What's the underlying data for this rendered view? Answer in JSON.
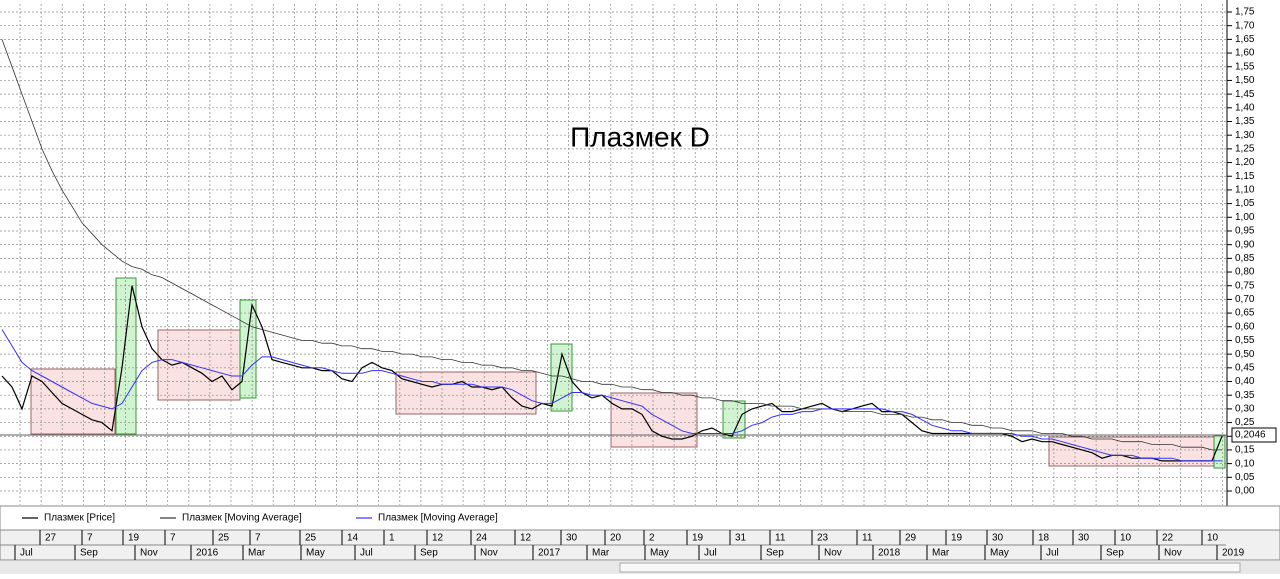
{
  "chart_data": {
    "type": "line",
    "title": "Плазмек D",
    "categories": [
      null,
      null,
      null,
      null,
      null,
      null,
      null,
      null,
      null,
      null,
      null,
      null,
      null,
      null,
      null,
      null,
      null,
      null,
      null,
      null,
      null,
      null,
      null,
      null,
      null,
      null,
      null,
      null,
      null,
      null,
      null,
      null,
      null,
      null,
      null,
      null,
      null,
      null,
      null,
      null,
      null,
      null,
      null,
      null,
      null,
      null,
      null,
      null,
      null,
      null,
      null,
      null,
      null,
      null,
      null,
      null,
      null,
      null,
      null,
      null,
      null,
      null,
      null,
      null,
      null,
      null,
      null,
      null,
      null,
      null,
      null,
      null,
      null,
      null,
      null,
      null,
      null,
      null,
      null,
      null,
      null,
      null,
      null,
      null,
      null,
      null,
      null,
      null,
      null,
      null,
      null,
      null,
      null,
      null,
      null,
      null,
      null,
      null,
      null,
      null,
      null,
      null,
      null,
      null,
      null,
      null,
      null,
      null,
      null,
      null,
      null,
      null,
      null,
      null,
      null,
      null,
      null,
      null,
      null,
      null,
      null,
      null,
      null
    ],
    "series": [
      {
        "name": "Плазмек [Price]",
        "color": "#000000",
        "values": [
          0.42,
          0.38,
          0.3,
          0.42,
          0.4,
          0.36,
          0.32,
          0.3,
          0.28,
          0.26,
          0.25,
          0.22,
          0.45,
          0.75,
          0.6,
          0.52,
          0.48,
          0.46,
          0.47,
          0.45,
          0.43,
          0.4,
          0.42,
          0.37,
          0.4,
          0.68,
          0.6,
          0.48,
          0.47,
          0.46,
          0.45,
          0.45,
          0.44,
          0.44,
          0.41,
          0.4,
          0.45,
          0.47,
          0.45,
          0.44,
          0.41,
          0.4,
          0.39,
          0.38,
          0.39,
          0.39,
          0.4,
          0.38,
          0.38,
          0.37,
          0.38,
          0.34,
          0.31,
          0.3,
          0.32,
          0.31,
          0.5,
          0.4,
          0.36,
          0.34,
          0.35,
          0.32,
          0.3,
          0.3,
          0.28,
          0.22,
          0.2,
          0.19,
          0.19,
          0.2,
          0.22,
          0.23,
          0.21,
          0.2,
          0.28,
          0.3,
          0.31,
          0.32,
          0.29,
          0.29,
          0.3,
          0.31,
          0.32,
          0.3,
          0.29,
          0.3,
          0.31,
          0.32,
          0.29,
          0.29,
          0.28,
          0.25,
          0.22,
          0.21,
          0.21,
          0.21,
          0.21,
          0.21,
          0.21,
          0.21,
          0.21,
          0.2,
          0.18,
          0.19,
          0.18,
          0.18,
          0.17,
          0.16,
          0.15,
          0.14,
          0.12,
          0.13,
          0.13,
          0.12,
          0.12,
          0.12,
          0.11,
          0.11,
          0.11,
          0.11,
          0.11,
          0.11,
          0.2
        ]
      },
      {
        "name": "Плазмек [Moving Average]",
        "color": "#333333",
        "values": [
          1.65,
          1.55,
          1.45,
          1.35,
          1.25,
          1.17,
          1.1,
          1.04,
          0.98,
          0.94,
          0.9,
          0.87,
          0.84,
          0.82,
          0.81,
          0.79,
          0.78,
          0.76,
          0.74,
          0.72,
          0.7,
          0.68,
          0.66,
          0.64,
          0.62,
          0.6,
          0.59,
          0.58,
          0.57,
          0.56,
          0.55,
          0.55,
          0.54,
          0.54,
          0.53,
          0.53,
          0.52,
          0.52,
          0.51,
          0.51,
          0.5,
          0.5,
          0.49,
          0.49,
          0.48,
          0.48,
          0.47,
          0.47,
          0.46,
          0.46,
          0.45,
          0.45,
          0.44,
          0.44,
          0.43,
          0.42,
          0.42,
          0.41,
          0.4,
          0.4,
          0.39,
          0.39,
          0.38,
          0.38,
          0.37,
          0.37,
          0.36,
          0.36,
          0.35,
          0.35,
          0.34,
          0.34,
          0.33,
          0.33,
          0.32,
          0.32,
          0.32,
          0.31,
          0.31,
          0.31,
          0.3,
          0.3,
          0.3,
          0.3,
          0.29,
          0.29,
          0.29,
          0.29,
          0.28,
          0.28,
          0.28,
          0.27,
          0.27,
          0.26,
          0.26,
          0.25,
          0.25,
          0.24,
          0.24,
          0.23,
          0.23,
          0.22,
          0.22,
          0.22,
          0.21,
          0.21,
          0.21,
          0.2,
          0.2,
          0.19,
          0.19,
          0.19,
          0.18,
          0.18,
          0.18,
          0.17,
          0.17,
          0.17,
          0.16,
          0.16,
          0.16,
          0.15,
          0.15
        ]
      },
      {
        "name": "Плазмек [Moving Average]",
        "color": "#3333ff",
        "values": [
          0.59,
          0.53,
          0.47,
          0.44,
          0.42,
          0.4,
          0.38,
          0.36,
          0.34,
          0.32,
          0.31,
          0.3,
          0.32,
          0.38,
          0.44,
          0.47,
          0.48,
          0.48,
          0.47,
          0.46,
          0.45,
          0.44,
          0.43,
          0.42,
          0.42,
          0.46,
          0.49,
          0.49,
          0.48,
          0.47,
          0.46,
          0.45,
          0.45,
          0.44,
          0.43,
          0.43,
          0.43,
          0.44,
          0.44,
          0.43,
          0.42,
          0.41,
          0.4,
          0.4,
          0.39,
          0.39,
          0.39,
          0.39,
          0.38,
          0.38,
          0.38,
          0.37,
          0.35,
          0.33,
          0.32,
          0.32,
          0.34,
          0.36,
          0.36,
          0.35,
          0.35,
          0.34,
          0.33,
          0.32,
          0.31,
          0.28,
          0.26,
          0.24,
          0.22,
          0.21,
          0.21,
          0.21,
          0.21,
          0.21,
          0.22,
          0.24,
          0.25,
          0.27,
          0.28,
          0.28,
          0.29,
          0.29,
          0.3,
          0.3,
          0.3,
          0.3,
          0.3,
          0.3,
          0.3,
          0.29,
          0.29,
          0.28,
          0.26,
          0.24,
          0.23,
          0.22,
          0.22,
          0.21,
          0.21,
          0.21,
          0.21,
          0.21,
          0.2,
          0.2,
          0.19,
          0.19,
          0.18,
          0.17,
          0.16,
          0.15,
          0.14,
          0.13,
          0.13,
          0.13,
          0.12,
          0.12,
          0.12,
          0.12,
          0.11,
          0.11,
          0.11,
          0.11,
          0.11
        ]
      }
    ],
    "last_price": {
      "value": 0.2046,
      "label": "0,2046"
    },
    "ylim": [
      0,
      1.75
    ],
    "yticks": [
      {
        "value": 0,
        "label": "0,00"
      },
      {
        "value": 0.05,
        "label": "0,05"
      },
      {
        "value": 0.1,
        "label": "0,10"
      },
      {
        "value": 0.15,
        "label": "0,15"
      },
      {
        "value": 0.2,
        "label": "0,20"
      },
      {
        "value": 0.25,
        "label": "0,25"
      },
      {
        "value": 0.3,
        "label": "0,30"
      },
      {
        "value": 0.35,
        "label": "0,35"
      },
      {
        "value": 0.4,
        "label": "0,40"
      },
      {
        "value": 0.45,
        "label": "0,45"
      },
      {
        "value": 0.5,
        "label": "0,50"
      },
      {
        "value": 0.55,
        "label": "0,55"
      },
      {
        "value": 0.6,
        "label": "0,60"
      },
      {
        "value": 0.65,
        "label": "0,65"
      },
      {
        "value": 0.7,
        "label": "0,70"
      },
      {
        "value": 0.75,
        "label": "0,75"
      },
      {
        "value": 0.8,
        "label": "0,80"
      },
      {
        "value": 0.85,
        "label": "0,85"
      },
      {
        "value": 0.9,
        "label": "0,90"
      },
      {
        "value": 0.95,
        "label": "0,95"
      },
      {
        "value": 1,
        "label": "1,00"
      },
      {
        "value": 1.05,
        "label": "1,05"
      },
      {
        "value": 1.1,
        "label": "1,10"
      },
      {
        "value": 1.15,
        "label": "1,15"
      },
      {
        "value": 1.2,
        "label": "1,20"
      },
      {
        "value": 1.25,
        "label": "1,25"
      },
      {
        "value": 1.3,
        "label": "1,30"
      },
      {
        "value": 1.35,
        "label": "1,35"
      },
      {
        "value": 1.4,
        "label": "1,40"
      },
      {
        "value": 1.45,
        "label": "1,45"
      },
      {
        "value": 1.5,
        "label": "1,50"
      },
      {
        "value": 1.55,
        "label": "1,55"
      },
      {
        "value": 1.6,
        "label": "1,60"
      },
      {
        "value": 1.65,
        "label": "1,65"
      },
      {
        "value": 1.7,
        "label": "1,70"
      },
      {
        "value": 1.75,
        "label": "1,75"
      }
    ],
    "grid": true,
    "x_axis_labels": {
      "days": [
        "27",
        "7",
        "19",
        "7",
        "25",
        "7",
        "25",
        "14",
        "1",
        "12",
        "24",
        "12",
        "30",
        "20",
        "2",
        "19",
        "31",
        "11",
        "23",
        "11",
        "29",
        "19",
        "30",
        "18",
        "30",
        "10",
        "22",
        "10"
      ],
      "months": [
        "Jul",
        "Sep",
        "Nov",
        "2016",
        "Mar",
        "May",
        "Jul",
        "Sep",
        "Nov",
        "2017",
        "Mar",
        "May",
        "Jul",
        "Sep",
        "Nov",
        "2018",
        "Mar",
        "May",
        "Jul",
        "Sep",
        "Nov",
        "2019"
      ]
    }
  }
}
